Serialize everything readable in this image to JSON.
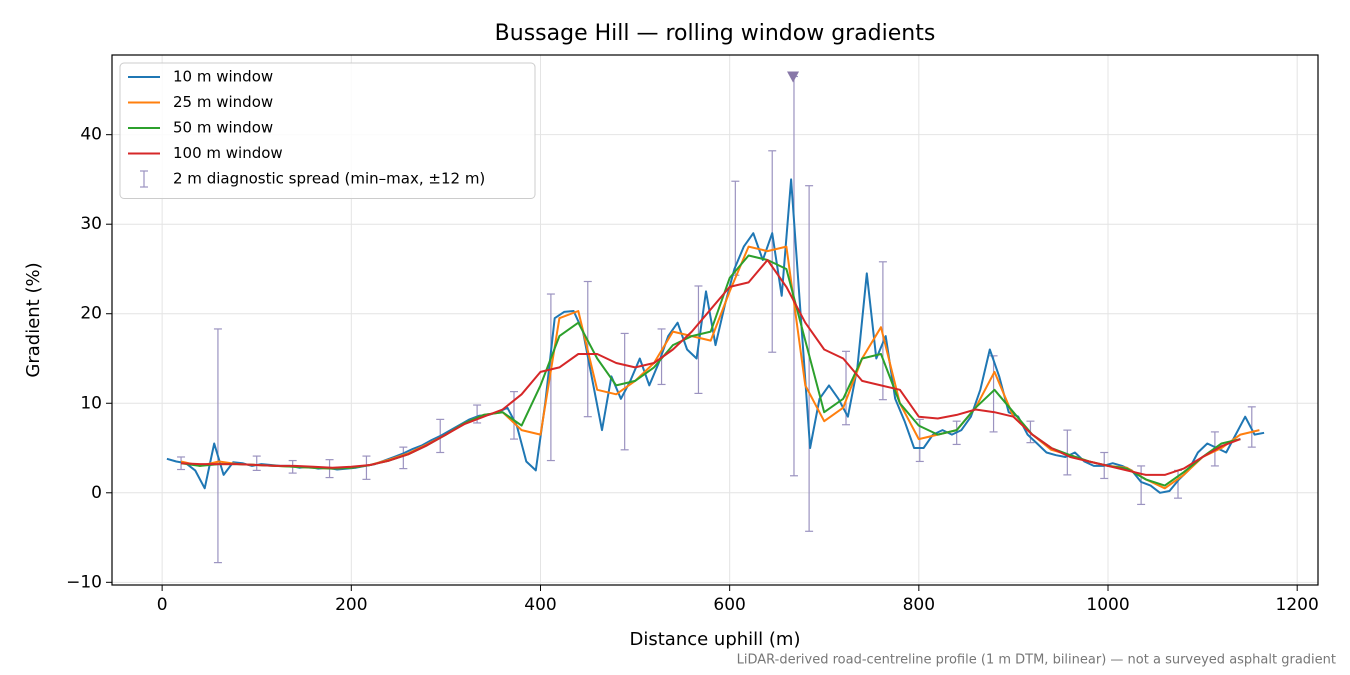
{
  "chart_data": {
    "type": "line",
    "title": "Bussage Hill — rolling window gradients",
    "x_label": "Distance uphill (m)",
    "y_label": "Gradient (%)",
    "footnote": "LiDAR-derived road-centreline profile (1 m DTM, bilinear) — not a surveyed asphalt gradient",
    "xlim": [
      -53,
      1222
    ],
    "ylim": [
      -10.3,
      48.9
    ],
    "xticks": [
      0,
      200,
      400,
      600,
      800,
      1000,
      1200
    ],
    "yticks": [
      {
        "value": -10,
        "label": "−10"
      },
      0,
      10,
      20,
      30,
      40
    ],
    "grid": true,
    "legend": "upper left",
    "series": [
      {
        "name": "10 m window",
        "color": "#1f77b4",
        "x": [
          5,
          15,
          25,
          35,
          45,
          55,
          65,
          75,
          85,
          95,
          105,
          115,
          125,
          135,
          145,
          155,
          165,
          175,
          185,
          195,
          205,
          215,
          225,
          235,
          245,
          255,
          265,
          275,
          285,
          295,
          305,
          315,
          325,
          335,
          345,
          355,
          365,
          375,
          385,
          395,
          405,
          415,
          425,
          435,
          445,
          455,
          465,
          475,
          485,
          495,
          505,
          515,
          525,
          535,
          545,
          555,
          565,
          575,
          585,
          595,
          605,
          615,
          625,
          635,
          645,
          655,
          665,
          675,
          685,
          695,
          705,
          715,
          725,
          735,
          745,
          755,
          765,
          775,
          785,
          795,
          805,
          815,
          825,
          835,
          845,
          855,
          865,
          875,
          885,
          895,
          905,
          915,
          925,
          935,
          945,
          955,
          965,
          975,
          985,
          995,
          1005,
          1015,
          1025,
          1035,
          1045,
          1055,
          1065,
          1075,
          1085,
          1095,
          1105,
          1115,
          1125,
          1135,
          1145,
          1155,
          1165
        ],
        "values": [
          3.8,
          3.5,
          3.3,
          2.5,
          0.5,
          5.5,
          2.0,
          3.4,
          3.3,
          3.0,
          3.2,
          3.1,
          3.0,
          3.0,
          2.8,
          2.9,
          2.7,
          2.8,
          2.6,
          2.7,
          2.8,
          3.0,
          3.2,
          3.6,
          4.0,
          4.4,
          4.9,
          5.3,
          5.9,
          6.4,
          7.0,
          7.6,
          8.2,
          8.6,
          8.7,
          9.0,
          9.5,
          7.5,
          3.5,
          2.5,
          10.0,
          19.5,
          20.2,
          20.3,
          18.0,
          12.5,
          7.0,
          13.0,
          10.5,
          12.5,
          15.0,
          12.0,
          14.5,
          17.5,
          19.0,
          16.0,
          15.0,
          22.5,
          16.5,
          21.0,
          25.0,
          27.5,
          29.0,
          26.0,
          29.0,
          22.0,
          35.0,
          20.0,
          5.0,
          10.5,
          12.0,
          10.5,
          8.5,
          14.0,
          24.5,
          15.0,
          17.5,
          10.5,
          8.0,
          5.0,
          5.0,
          6.5,
          7.0,
          6.5,
          7.0,
          8.5,
          11.5,
          16.0,
          13.0,
          9.0,
          8.5,
          6.5,
          5.5,
          4.5,
          4.2,
          4.0,
          4.5,
          3.5,
          3.0,
          3.0,
          3.3,
          3.0,
          2.5,
          1.2,
          0.8,
          0.0,
          0.2,
          1.5,
          2.5,
          4.5,
          5.5,
          5.0,
          4.5,
          6.5,
          8.5,
          6.5,
          6.7
        ]
      },
      {
        "name": "25 m window",
        "color": "#ff7f0e",
        "x": [
          20,
          40,
          60,
          80,
          100,
          120,
          140,
          160,
          180,
          200,
          220,
          240,
          260,
          280,
          300,
          320,
          340,
          360,
          380,
          400,
          420,
          440,
          460,
          480,
          500,
          520,
          540,
          560,
          580,
          600,
          620,
          640,
          660,
          680,
          700,
          720,
          740,
          760,
          780,
          800,
          820,
          840,
          860,
          880,
          900,
          920,
          940,
          960,
          980,
          1000,
          1020,
          1040,
          1060,
          1080,
          1100,
          1120,
          1140,
          1160
        ],
        "values": [
          3.5,
          3.0,
          3.5,
          3.2,
          3.1,
          3.0,
          2.9,
          2.8,
          2.7,
          2.8,
          3.1,
          3.7,
          4.4,
          5.4,
          6.5,
          7.8,
          8.7,
          9.0,
          7.0,
          6.5,
          19.5,
          20.3,
          11.5,
          11.0,
          12.5,
          14.5,
          18.0,
          17.5,
          17.0,
          22.5,
          27.5,
          27.0,
          27.5,
          12.0,
          8.0,
          9.5,
          15.0,
          18.5,
          10.0,
          6.0,
          6.5,
          7.0,
          9.5,
          13.5,
          8.5,
          6.5,
          4.8,
          4.2,
          3.5,
          3.0,
          2.8,
          1.5,
          0.5,
          2.0,
          4.0,
          5.0,
          6.5,
          7.0
        ]
      },
      {
        "name": "50 m window",
        "color": "#2ca02c",
        "x": [
          20,
          40,
          60,
          80,
          100,
          120,
          140,
          160,
          180,
          200,
          220,
          240,
          260,
          280,
          300,
          320,
          340,
          360,
          380,
          400,
          420,
          440,
          460,
          480,
          500,
          520,
          540,
          560,
          580,
          600,
          620,
          640,
          660,
          680,
          700,
          720,
          740,
          760,
          780,
          800,
          820,
          840,
          860,
          880,
          900,
          920,
          940,
          960,
          980,
          1000,
          1020,
          1040,
          1060,
          1080,
          1100,
          1120,
          1140
        ],
        "values": [
          3.3,
          3.0,
          3.2,
          3.2,
          3.1,
          3.0,
          2.9,
          2.8,
          2.7,
          2.8,
          3.1,
          3.6,
          4.3,
          5.3,
          6.5,
          7.8,
          8.7,
          9.0,
          7.5,
          12.0,
          17.5,
          19.0,
          15.0,
          12.0,
          12.5,
          14.0,
          16.5,
          17.5,
          18.0,
          24.0,
          26.5,
          26.0,
          25.0,
          17.0,
          9.0,
          10.5,
          15.0,
          15.5,
          10.0,
          7.5,
          6.5,
          7.0,
          9.5,
          11.5,
          9.0,
          6.5,
          5.0,
          4.2,
          3.5,
          3.0,
          2.7,
          1.5,
          0.8,
          2.3,
          4.0,
          5.5,
          6.0
        ]
      },
      {
        "name": "100 m window",
        "color": "#d62728",
        "x": [
          20,
          40,
          60,
          80,
          100,
          120,
          140,
          160,
          180,
          200,
          220,
          240,
          260,
          280,
          300,
          320,
          340,
          360,
          380,
          400,
          420,
          440,
          460,
          480,
          500,
          520,
          540,
          560,
          580,
          600,
          620,
          640,
          660,
          680,
          700,
          720,
          740,
          760,
          780,
          800,
          820,
          840,
          860,
          880,
          900,
          920,
          940,
          960,
          980,
          1000,
          1020,
          1040,
          1060,
          1080,
          1100,
          1120,
          1140
        ],
        "values": [
          3.3,
          3.2,
          3.2,
          3.2,
          3.1,
          3.0,
          3.0,
          2.9,
          2.8,
          2.9,
          3.1,
          3.6,
          4.3,
          5.3,
          6.5,
          7.7,
          8.5,
          9.3,
          11.0,
          13.5,
          14.0,
          15.5,
          15.5,
          14.5,
          14.0,
          14.5,
          16.0,
          18.0,
          20.5,
          23.0,
          23.5,
          26.0,
          23.0,
          19.0,
          16.0,
          15.0,
          12.5,
          12.0,
          11.5,
          8.5,
          8.3,
          8.7,
          9.3,
          9.0,
          8.5,
          6.5,
          5.0,
          4.0,
          3.5,
          3.0,
          2.5,
          2.0,
          2.0,
          2.7,
          4.0,
          5.2,
          6.0
        ]
      }
    ],
    "errorbars": {
      "name": "2 m diagnostic spread (min–max, ±12 m)",
      "color": "#9b93c0",
      "x": [
        20,
        59,
        100,
        138,
        177,
        216,
        255,
        294,
        333,
        372,
        411,
        450,
        489,
        528,
        567,
        606,
        645,
        668,
        684,
        723,
        762,
        801,
        840,
        879,
        918,
        957,
        996,
        1035,
        1074,
        1113,
        1152
      ],
      "low": [
        2.6,
        -7.8,
        2.5,
        2.2,
        1.7,
        1.5,
        2.7,
        4.5,
        7.8,
        6.0,
        3.6,
        8.5,
        4.8,
        12.1,
        11.1,
        24.3,
        15.7,
        1.9,
        -4.3,
        7.6,
        10.4,
        3.5,
        5.4,
        6.8,
        5.6,
        2.0,
        1.6,
        -1.3,
        -0.6,
        3.0,
        5.1
      ],
      "high": [
        4.0,
        18.3,
        4.1,
        3.6,
        3.7,
        4.1,
        5.1,
        8.2,
        9.8,
        11.3,
        22.2,
        23.6,
        17.8,
        18.3,
        23.1,
        34.8,
        38.2,
        46.5,
        34.3,
        15.8,
        25.8,
        8.2,
        8.0,
        15.3,
        8.0,
        7.0,
        4.5,
        3.0,
        2.5,
        6.8,
        9.6
      ]
    },
    "marker": {
      "x": 667,
      "y": 46.5,
      "color": "#8878a8"
    }
  }
}
